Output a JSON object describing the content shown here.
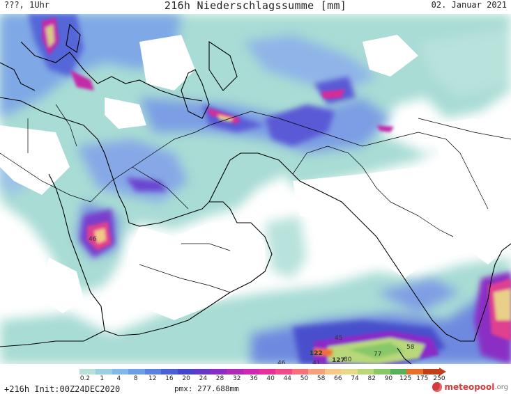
{
  "header": {
    "left": "???, 1Uhr",
    "title": "216h Niederschlagssumme [mm]",
    "date": "02. Januar 2021"
  },
  "legend": {
    "ticks": [
      "0.2",
      "1",
      "4",
      "8",
      "12",
      "16",
      "20",
      "24",
      "28",
      "32",
      "36",
      "40",
      "44",
      "50",
      "58",
      "66",
      "74",
      "82",
      "90",
      "125",
      "175",
      "250"
    ],
    "colors": [
      "#b6e0d8",
      "#9ad0e2",
      "#84b8e8",
      "#6e9ee8",
      "#5a80e0",
      "#4a60d8",
      "#4646cc",
      "#6438c8",
      "#8a2cc8",
      "#b02ab8",
      "#d028b0",
      "#e8309a",
      "#f04a8a",
      "#f8707c",
      "#f8a07c",
      "#f8c888",
      "#e8d88a",
      "#b8d87a",
      "#88c868",
      "#58b058",
      "#e8702a",
      "#c0401c"
    ]
  },
  "footer": {
    "init": "+216h Init:00Z24DEC2020",
    "pmx": "pmx: 277.688mm",
    "logo_main": "meteopool",
    "logo_tld": ".org"
  },
  "map_labels": [
    {
      "text": "46"
    },
    {
      "text": "122"
    },
    {
      "text": "127"
    },
    {
      "text": "80"
    },
    {
      "text": "77"
    },
    {
      "text": "58"
    },
    {
      "text": "41"
    },
    {
      "text": "46"
    },
    {
      "text": "45"
    }
  ]
}
